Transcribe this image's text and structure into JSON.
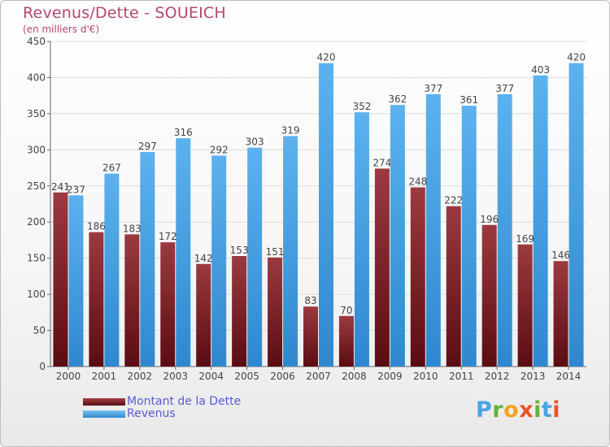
{
  "title": "Revenus/Dette - SOUEICH",
  "subtitle": "(en milliers d'€)",
  "legend": {
    "debt_label": "Montant de la Dette",
    "revenue_label": "Revenus"
  },
  "logo_text": "Proxiti",
  "colors": {
    "debt": "#7a1f24",
    "revenue": "#4aa6e6",
    "title": "#b5466e",
    "legend_text": "#5a5ad6"
  },
  "chart_data": {
    "type": "bar",
    "title": "Revenus/Dette - SOUEICH",
    "subtitle": "(en milliers d'€)",
    "categories": [
      "2000",
      "2001",
      "2002",
      "2003",
      "2004",
      "2005",
      "2006",
      "2007",
      "2008",
      "2009",
      "2010",
      "2011",
      "2012",
      "2013",
      "2014"
    ],
    "series": [
      {
        "name": "Montant de la Dette",
        "values": [
          241,
          186,
          183,
          172,
          142,
          153,
          151,
          83,
          70,
          274,
          248,
          222,
          196,
          169,
          146
        ]
      },
      {
        "name": "Revenus",
        "values": [
          237,
          267,
          297,
          316,
          292,
          303,
          319,
          420,
          352,
          362,
          377,
          361,
          377,
          403,
          420
        ]
      }
    ],
    "ylim": [
      0,
      450
    ],
    "yticks": [
      0,
      50,
      100,
      150,
      200,
      250,
      300,
      350,
      400,
      450
    ],
    "grid": true,
    "legend_position": "bottom-left"
  }
}
